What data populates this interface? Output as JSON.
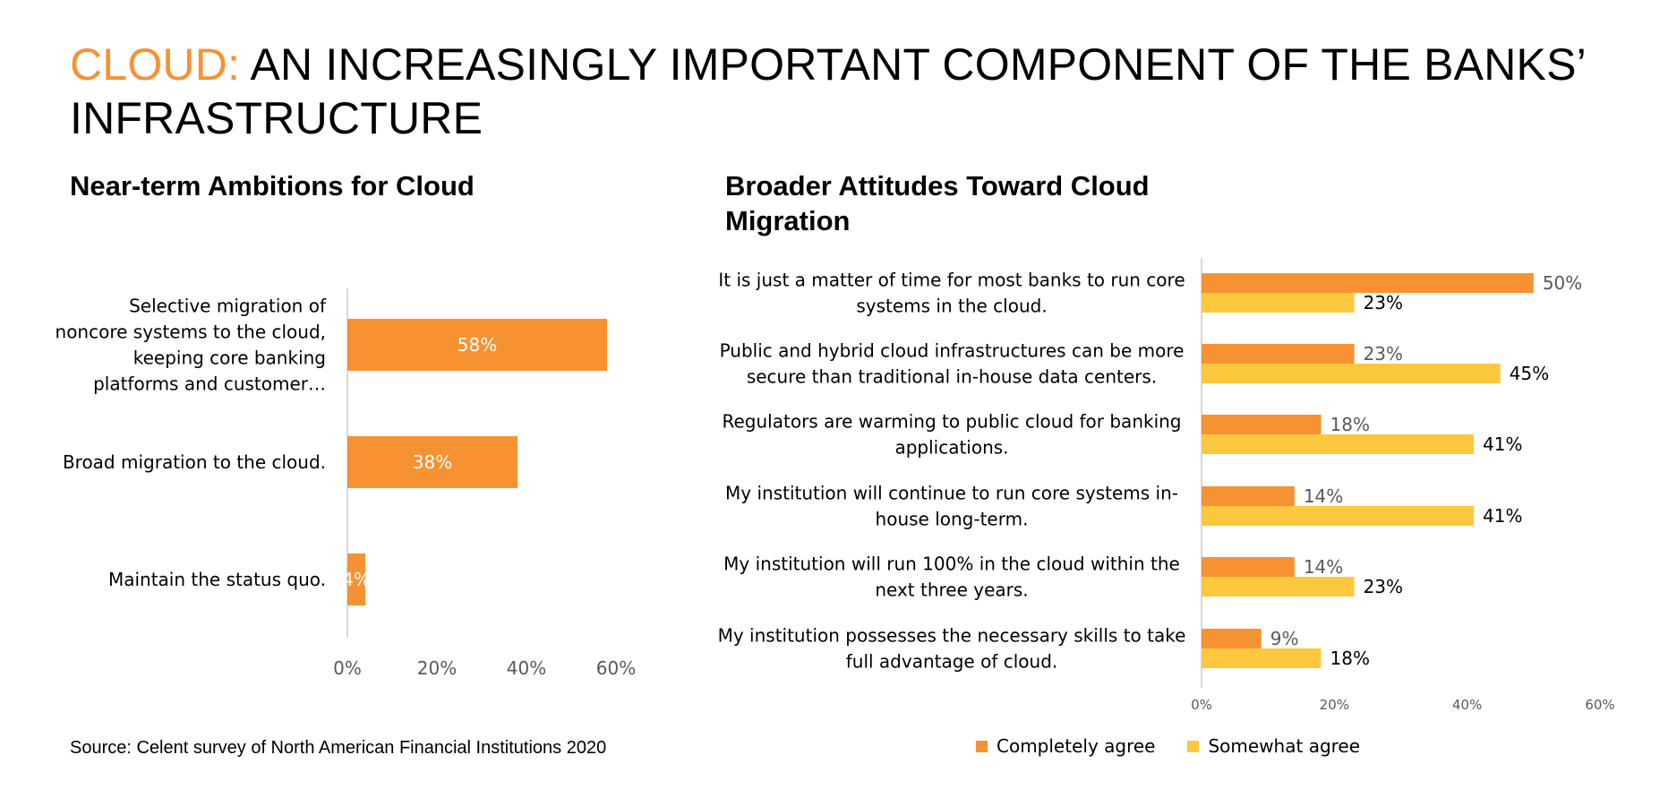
{
  "page": {
    "title_accent": "CLOUD:",
    "title_rest": "AN INCREASINGLY IMPORTANT COMPONENT OF THE BANKS’ INFRASTRUCTURE",
    "source": "Source: Celent survey of North American Financial Institutions 2020"
  },
  "colors": {
    "accent": "#f79232",
    "completely": "#f79232",
    "somewhat": "#fdc83e",
    "axis": "#d9d9d9",
    "tick": "#595959"
  },
  "chart_data": [
    {
      "type": "bar",
      "orientation": "horizontal",
      "title": "Near-term Ambitions for Cloud",
      "categories": [
        "Selective migration of noncore systems to the cloud, keeping core banking platforms and customer…",
        "Broad migration to the cloud.",
        "Maintain the status quo."
      ],
      "category_lines": [
        [
          "Selective migration of",
          "noncore systems to the cloud,",
          "keeping core banking",
          "platforms and customer…"
        ],
        [
          "Broad migration to the cloud."
        ],
        [
          "Maintain the status quo."
        ]
      ],
      "values": [
        58,
        38,
        4
      ],
      "data_labels": [
        "58%",
        "38%",
        "4%"
      ],
      "xlim": [
        0,
        60
      ],
      "xticks": [
        "0%",
        "20%",
        "40%",
        "60%"
      ],
      "grid": false,
      "legend": "none"
    },
    {
      "type": "bar",
      "orientation": "horizontal",
      "title": "Broader Attitudes Toward Cloud Migration",
      "categories": [
        "It is just a matter of time for most banks to run core systems in the cloud.",
        "Public and hybrid cloud infrastructures can be more secure than traditional in-house data centers.",
        "Regulators are warming to public cloud for banking applications.",
        "My institution will continue to run core systems in-house long-term.",
        "My institution will run 100% in the cloud within the next three years.",
        "My institution possesses the necessary skills to take full advantage of cloud."
      ],
      "category_lines": [
        [
          "It is just a matter of time for most banks to run core",
          "systems in the cloud."
        ],
        [
          "Public and hybrid cloud infrastructures can be more",
          "secure than traditional in-house data centers."
        ],
        [
          "Regulators are warming to public cloud for banking",
          "applications."
        ],
        [
          "My institution will continue to run core systems in-",
          "house long-term."
        ],
        [
          "My institution will run 100% in the cloud within the",
          "next three years."
        ],
        [
          "My institution possesses the necessary skills to take",
          "full advantage of cloud."
        ]
      ],
      "series": [
        {
          "name": "Completely agree",
          "values": [
            50,
            23,
            18,
            14,
            14,
            9
          ],
          "data_labels": [
            "50%",
            "23%",
            "18%",
            "14%",
            "14%",
            "9%"
          ]
        },
        {
          "name": "Somewhat agree",
          "values": [
            23,
            45,
            41,
            41,
            23,
            18
          ],
          "data_labels": [
            "23%",
            "45%",
            "41%",
            "41%",
            "23%",
            "18%"
          ]
        }
      ],
      "xlim": [
        0,
        60
      ],
      "xticks": [
        "0%",
        "20%",
        "40%",
        "60%"
      ],
      "grid": false,
      "legend": "bottom"
    }
  ]
}
